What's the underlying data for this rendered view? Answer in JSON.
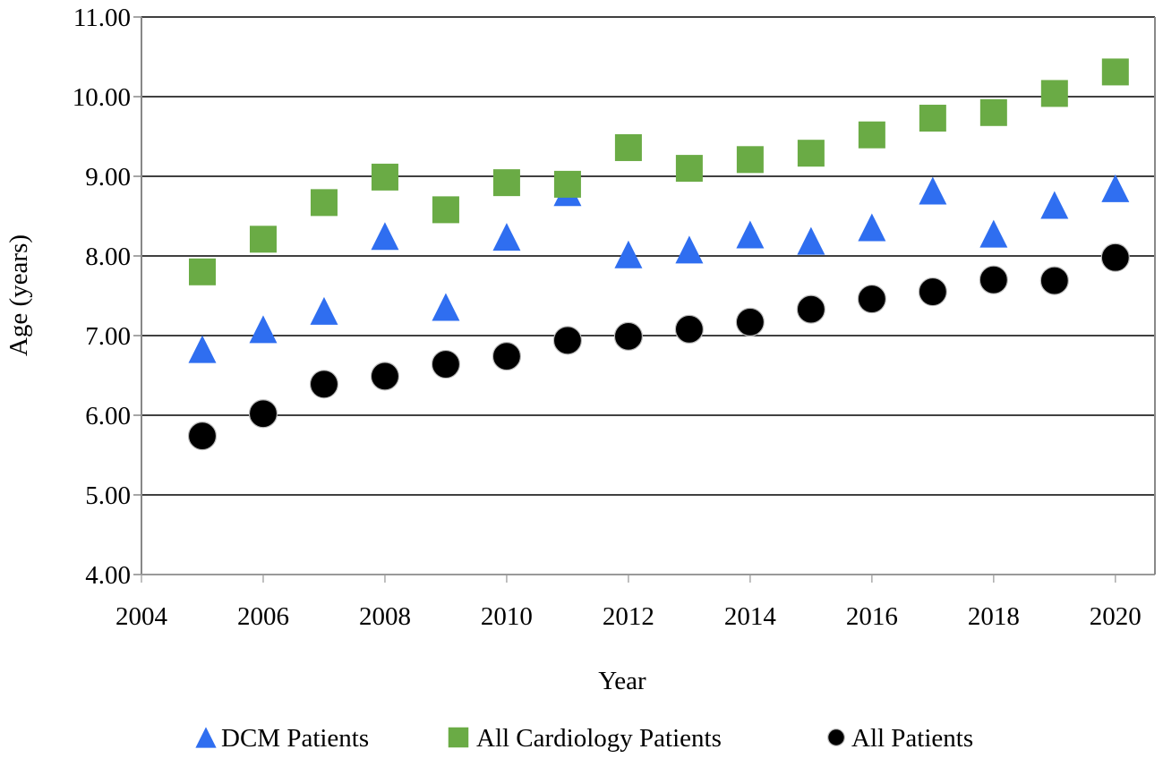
{
  "chart_data": {
    "type": "scatter",
    "title": "",
    "xlabel": "Year",
    "ylabel": "Age (years)",
    "xlim": [
      2004,
      2020.65
    ],
    "ylim": [
      4,
      11
    ],
    "x_ticks": [
      "2004",
      "2006",
      "2008",
      "2010",
      "2012",
      "2014",
      "2016",
      "2018",
      "2020"
    ],
    "y_ticks": [
      "4.00",
      "5.00",
      "6.00",
      "7.00",
      "8.00",
      "9.00",
      "10.00",
      "11.00"
    ],
    "grid": "horizontal",
    "legend_position": "bottom",
    "x": [
      2005,
      2006,
      2007,
      2008,
      2009,
      2010,
      2011,
      2012,
      2013,
      2014,
      2015,
      2016,
      2017,
      2018,
      2019,
      2020
    ],
    "series": [
      {
        "name": "DCM Patients",
        "marker": "triangle",
        "color": "#2f6ef0",
        "values": [
          6.83,
          7.08,
          7.31,
          8.25,
          7.36,
          8.24,
          8.8,
          8.02,
          8.08,
          8.27,
          8.19,
          8.36,
          8.82,
          8.28,
          8.64,
          8.85
        ]
      },
      {
        "name": "All Cardiology Patients",
        "marker": "square",
        "color": "#6aab45",
        "values": [
          7.8,
          8.21,
          8.67,
          8.99,
          8.58,
          8.92,
          8.9,
          9.36,
          9.1,
          9.21,
          9.29,
          9.52,
          9.73,
          9.8,
          10.04,
          10.31
        ]
      },
      {
        "name": "All Patients",
        "marker": "circle",
        "color": "#000000",
        "values": [
          5.74,
          6.02,
          6.39,
          6.49,
          6.64,
          6.74,
          6.94,
          6.99,
          7.08,
          7.17,
          7.33,
          7.46,
          7.55,
          7.7,
          7.69,
          7.98
        ]
      }
    ]
  }
}
